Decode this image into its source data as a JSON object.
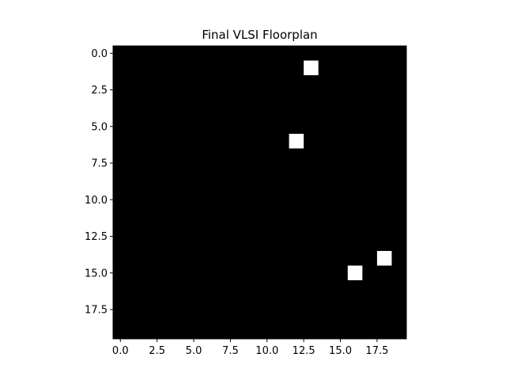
{
  "chart_data": {
    "type": "heatmap",
    "title": "Final VLSI Floorplan",
    "xlabel": "",
    "ylabel": "",
    "grid": false,
    "rows": 20,
    "cols": 20,
    "xlim": [
      -0.5,
      19.5
    ],
    "ylim": [
      19.5,
      -0.5
    ],
    "xticks": [
      0.0,
      2.5,
      5.0,
      7.5,
      10.0,
      12.5,
      15.0,
      17.5
    ],
    "xtick_labels": [
      "0.0",
      "2.5",
      "5.0",
      "7.5",
      "10.0",
      "12.5",
      "15.0",
      "17.5"
    ],
    "yticks": [
      0.0,
      2.5,
      5.0,
      7.5,
      10.0,
      12.5,
      15.0,
      17.5
    ],
    "ytick_labels": [
      "0.0",
      "2.5",
      "5.0",
      "7.5",
      "10.0",
      "12.5",
      "15.0",
      "17.5"
    ],
    "colormap": {
      "0": "#000000",
      "1": "#ffffff"
    },
    "background_value": 0,
    "cells": [
      {
        "row": 1,
        "col": 13,
        "value": 1
      },
      {
        "row": 6,
        "col": 12,
        "value": 1
      },
      {
        "row": 14,
        "col": 18,
        "value": 1
      },
      {
        "row": 15,
        "col": 16,
        "value": 1
      }
    ]
  }
}
